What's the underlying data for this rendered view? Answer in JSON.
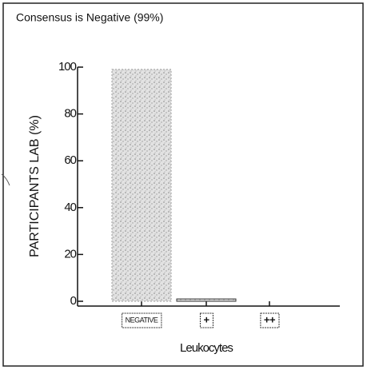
{
  "chart_data": {
    "type": "bar",
    "title": "Consensus is Negative (99%)",
    "y_label": "PARTICIPANTS LAB (%)",
    "x_label": "Leukocytes",
    "categories": [
      "NEGATIVE",
      "+",
      "++"
    ],
    "values": [
      99,
      1,
      0
    ],
    "color": "#cfcfcf",
    "ylim": [
      0,
      100
    ],
    "yticks": [
      0,
      20,
      40,
      60,
      80,
      100
    ]
  }
}
